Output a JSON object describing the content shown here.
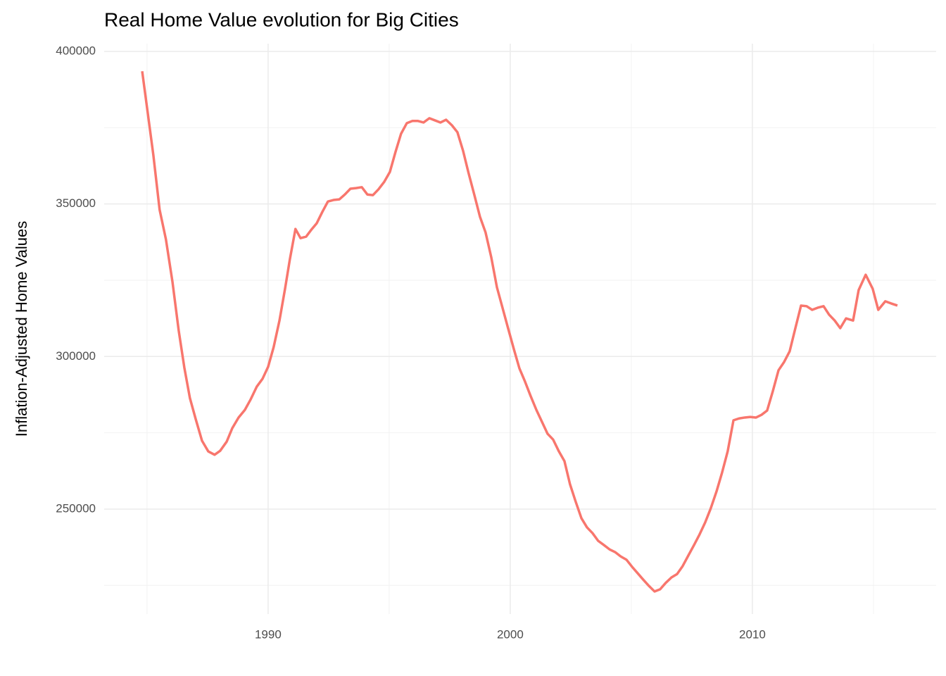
{
  "chart_data": {
    "type": "line",
    "title": "Real Home Value evolution for Big Cities",
    "y_label": "Inflation-Adjusted Home Values",
    "color": "#f8766d",
    "grid": true,
    "xlim": [
      1983.23,
      2017.59
    ],
    "ylim": [
      215600,
      402540
    ],
    "xticks": [
      1990,
      2000,
      2010
    ],
    "yticks": [
      250000,
      300000,
      350000,
      400000
    ],
    "x": [
      1984.8,
      1985.26,
      1985.52,
      1985.78,
      1986.05,
      1986.31,
      1986.54,
      1986.77,
      1987.01,
      1987.27,
      1987.53,
      1987.79,
      1988.02,
      1988.29,
      1988.52,
      1988.78,
      1989.04,
      1989.27,
      1989.53,
      1989.77,
      1990.0,
      1990.23,
      1990.47,
      1990.7,
      1990.9,
      1991.13,
      1991.34,
      1991.57,
      1991.77,
      1992.01,
      1992.24,
      1992.47,
      1992.7,
      1992.94,
      1993.17,
      1993.4,
      1993.63,
      1993.87,
      1994.1,
      1994.33,
      1994.56,
      1994.8,
      1995.03,
      1995.26,
      1995.49,
      1995.73,
      1995.96,
      1996.19,
      1996.42,
      1996.66,
      1996.89,
      1997.12,
      1997.35,
      1997.59,
      1997.82,
      1998.05,
      1998.28,
      1998.52,
      1998.75,
      1998.98,
      1999.22,
      1999.45,
      1999.68,
      1999.91,
      2000.15,
      2000.38,
      2000.61,
      2000.84,
      2001.08,
      2001.31,
      2001.54,
      2001.77,
      2002.01,
      2002.24,
      2002.47,
      2002.7,
      2002.94,
      2003.17,
      2003.4,
      2003.63,
      2003.87,
      2004.1,
      2004.33,
      2004.56,
      2004.8,
      2005.03,
      2005.26,
      2005.49,
      2005.73,
      2005.96,
      2006.19,
      2006.42,
      2006.66,
      2006.89,
      2007.12,
      2007.35,
      2007.59,
      2007.82,
      2008.05,
      2008.28,
      2008.52,
      2008.75,
      2008.98,
      2009.22,
      2009.45,
      2009.68,
      2009.91,
      2010.15,
      2010.38,
      2010.61,
      2010.84,
      2011.08,
      2011.31,
      2011.54,
      2011.77,
      2012.01,
      2012.24,
      2012.47,
      2012.7,
      2012.94,
      2013.17,
      2013.4,
      2013.63,
      2013.87,
      2014.16,
      2014.39,
      2014.68,
      2014.97,
      2015.2,
      2015.49,
      2015.73,
      2015.99
    ],
    "values": [
      393500,
      366100,
      348100,
      338400,
      324500,
      308400,
      296400,
      286400,
      279500,
      272400,
      268900,
      267800,
      269100,
      272100,
      276500,
      280000,
      282500,
      285800,
      290100,
      292700,
      296600,
      303100,
      311800,
      322200,
      331900,
      341800,
      338800,
      339300,
      341400,
      343700,
      347400,
      350800,
      351300,
      351500,
      353100,
      355000,
      355200,
      355500,
      353100,
      352900,
      354800,
      357300,
      360500,
      367000,
      373000,
      376500,
      377200,
      377200,
      376700,
      378100,
      377400,
      376700,
      377600,
      375800,
      373500,
      367500,
      360100,
      352900,
      345800,
      340700,
      332400,
      322700,
      316000,
      309300,
      302400,
      296100,
      291800,
      287100,
      282500,
      278600,
      274700,
      272800,
      268900,
      265700,
      258100,
      252500,
      247000,
      244000,
      242100,
      239600,
      238200,
      236800,
      235900,
      234500,
      233400,
      231100,
      229000,
      226900,
      224800,
      223000,
      223700,
      225800,
      227600,
      228700,
      231300,
      234700,
      238200,
      241700,
      245600,
      250200,
      255800,
      262000,
      268900,
      279100,
      279700,
      280000,
      280200,
      280000,
      280900,
      282300,
      288500,
      295500,
      298200,
      301700,
      309100,
      316700,
      316500,
      315300,
      316000,
      316500,
      313700,
      311800,
      309300,
      312500,
      311800,
      321800,
      326800,
      322200,
      315300,
      318100,
      317400,
      316700
    ]
  }
}
